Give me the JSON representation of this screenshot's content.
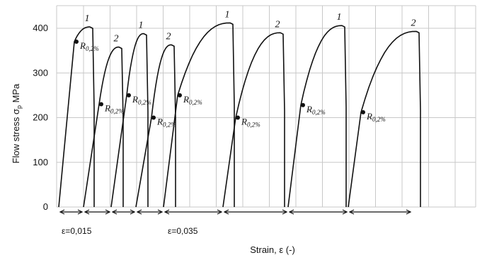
{
  "chart_data": {
    "type": "line",
    "title": "",
    "ylabel_main": "Flow stress σ",
    "ylabel_sub": "p",
    "ylabel_unit": " MPa",
    "xlabel": "Strain, ε (-)",
    "ylim": [
      0,
      450
    ],
    "yticks": [
      0,
      100,
      200,
      300,
      400
    ],
    "grid": true,
    "cycle_labels": [
      "1",
      "2",
      "1",
      "2",
      "1",
      "2",
      "1",
      "2"
    ],
    "proof_label_main": "R",
    "proof_label_sub": "0,2%",
    "yield_points_mpa": [
      370,
      230,
      250,
      200,
      250,
      200,
      228,
      212
    ],
    "peak_stress_mpa": [
      403,
      358,
      388,
      363,
      412,
      390,
      406,
      393
    ],
    "segment_annotations": [
      "ε=0,015",
      "ε=0,035"
    ]
  }
}
